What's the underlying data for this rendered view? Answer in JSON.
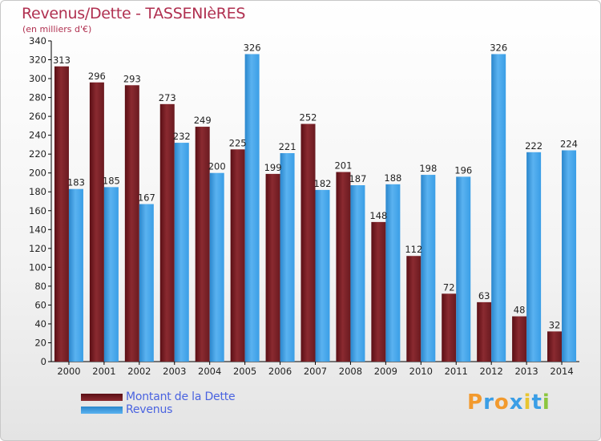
{
  "chart_data": {
    "type": "bar",
    "title": "Revenus/Dette - TASSENIèRES",
    "subtitle": "(en milliers d'€)",
    "categories": [
      "2000",
      "2001",
      "2002",
      "2003",
      "2004",
      "2005",
      "2006",
      "2007",
      "2008",
      "2009",
      "2010",
      "2011",
      "2012",
      "2013",
      "2014"
    ],
    "series": [
      {
        "name": "Montant de la Dette",
        "color": "#7a1e24",
        "values": [
          313,
          296,
          293,
          273,
          249,
          225,
          199,
          252,
          201,
          148,
          112,
          72,
          63,
          48,
          32
        ]
      },
      {
        "name": "Revenus",
        "color": "#3a9ee6",
        "values": [
          183,
          185,
          167,
          232,
          200,
          326,
          221,
          182,
          187,
          188,
          198,
          196,
          326,
          222,
          224
        ]
      }
    ],
    "ylim": [
      0,
      340
    ],
    "yticks": [
      0,
      20,
      40,
      60,
      80,
      100,
      120,
      140,
      160,
      180,
      200,
      220,
      240,
      260,
      280,
      300,
      320,
      340
    ],
    "grid": false,
    "legend_position": "bottom-left"
  },
  "logo": {
    "text": "Proxiti",
    "letters": [
      {
        "ch": "P",
        "color": "#f29a2e"
      },
      {
        "ch": "r",
        "color": "#3a9ee6"
      },
      {
        "ch": "o",
        "color": "#f29a2e"
      },
      {
        "ch": "x",
        "color": "#3a9ee6"
      },
      {
        "ch": "i",
        "color": "#e8c531"
      },
      {
        "ch": "t",
        "color": "#3a9ee6"
      },
      {
        "ch": "i",
        "color": "#8cc63f"
      }
    ]
  }
}
